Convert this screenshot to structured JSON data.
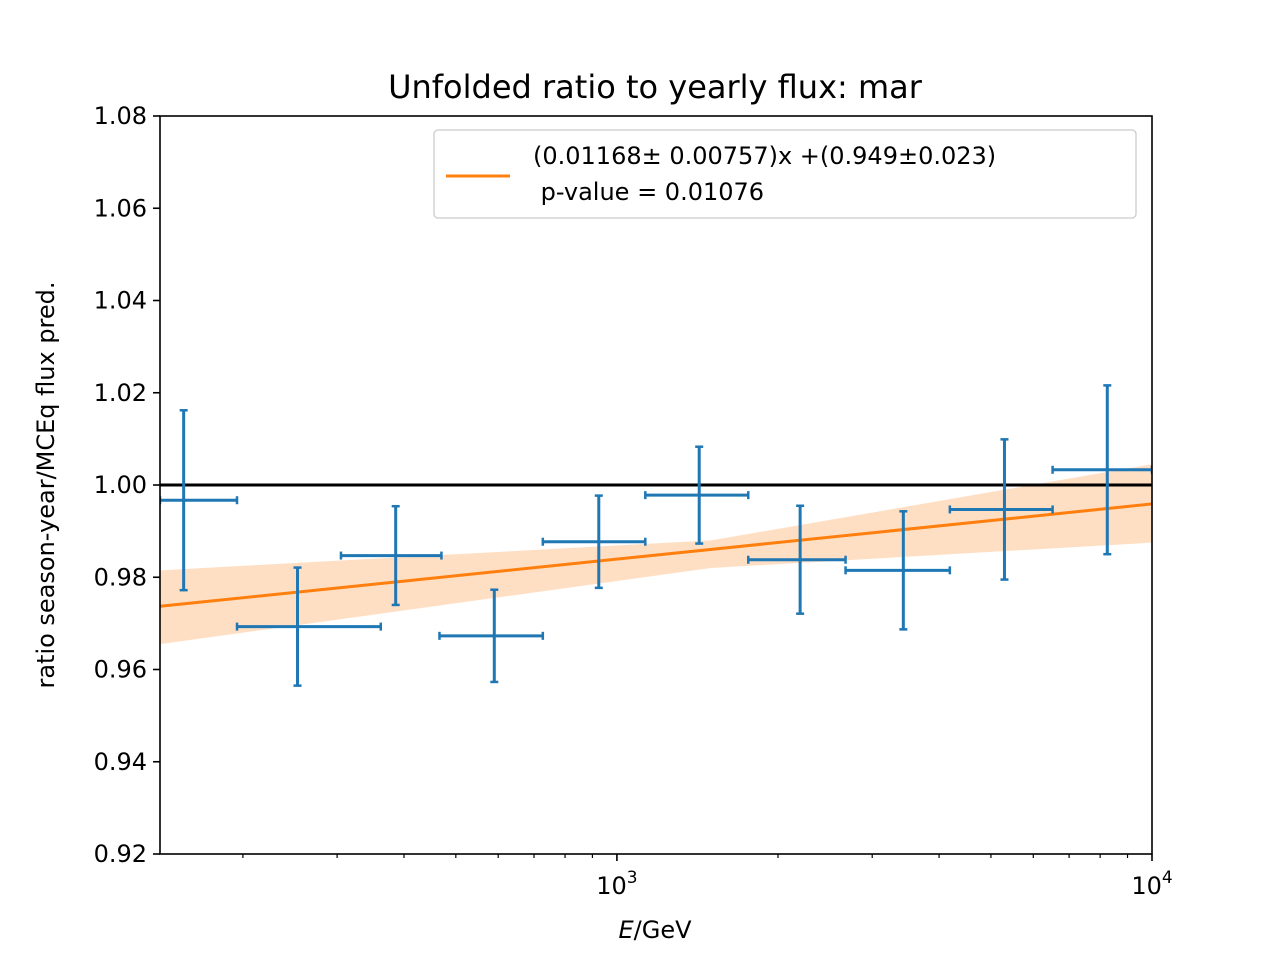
{
  "chart_data": {
    "type": "scatter",
    "title": "Unfolded ratio to yearly flux: mar",
    "xlabel_var": "E",
    "xlabel_unit": "/GeV",
    "ylabel": "ratio season-year/MCEq flux pred.",
    "xscale": "log",
    "xlim": [
      140,
      10000
    ],
    "ylim": [
      0.92,
      1.08
    ],
    "y_ticks": [
      0.92,
      0.94,
      0.96,
      0.98,
      1.0,
      1.02,
      1.04,
      1.06,
      1.08
    ],
    "y_tick_labels": [
      "0.92",
      "0.94",
      "0.96",
      "0.98",
      "1.00",
      "1.02",
      "1.04",
      "1.06",
      "1.08"
    ],
    "x_major_ticks": [
      {
        "value": 1000,
        "base": "10",
        "exp": "3"
      },
      {
        "value": 10000,
        "base": "10",
        "exp": "4"
      }
    ],
    "x_minor_ticks": [
      200,
      300,
      400,
      500,
      600,
      700,
      800,
      900,
      2000,
      3000,
      4000,
      5000,
      6000,
      7000,
      8000,
      9000
    ],
    "grid": false,
    "reference_line": {
      "y": 1.0,
      "color": "#000000"
    },
    "series": [
      {
        "kind": "errorbar",
        "color": "#1f77b4",
        "points": [
          {
            "x": 155,
            "xlo": 140,
            "xhi": 195,
            "y": 0.9967,
            "yerr": 0.0195
          },
          {
            "x": 253,
            "xlo": 195,
            "xhi": 362,
            "y": 0.9693,
            "yerr": 0.0128
          },
          {
            "x": 386,
            "xlo": 305,
            "xhi": 470,
            "y": 0.9847,
            "yerr": 0.0107
          },
          {
            "x": 590,
            "xlo": 466,
            "xhi": 727,
            "y": 0.9673,
            "yerr": 0.01
          },
          {
            "x": 925,
            "xlo": 727,
            "xhi": 1130,
            "y": 0.9877,
            "yerr": 0.01
          },
          {
            "x": 1425,
            "xlo": 1130,
            "xhi": 1760,
            "y": 0.9978,
            "yerr": 0.0105
          },
          {
            "x": 2200,
            "xlo": 1760,
            "xhi": 2675,
            "y": 0.9838,
            "yerr": 0.0117
          },
          {
            "x": 3430,
            "xlo": 2675,
            "xhi": 4190,
            "y": 0.9815,
            "yerr": 0.0128
          },
          {
            "x": 5300,
            "xlo": 4190,
            "xhi": 6520,
            "y": 0.9947,
            "yerr": 0.0152
          },
          {
            "x": 8250,
            "xlo": 6520,
            "xhi": 10000,
            "y": 1.0033,
            "yerr": 0.0183
          }
        ]
      },
      {
        "kind": "fit",
        "color": "#ff7f0e",
        "band_color": "#ffdfc4",
        "name": "(0.01168± 0.00757)x +(0.949±0.023)",
        "name_line2": " p-value = 0.01076",
        "line": [
          {
            "x": 140,
            "y": 0.9737
          },
          {
            "x": 10000,
            "y": 0.9959
          }
        ],
        "band_lower": [
          {
            "x": 140,
            "y": 0.9655
          },
          {
            "x": 1500,
            "y": 0.982
          },
          {
            "x": 10000,
            "y": 0.9875
          }
        ],
        "band_upper": [
          {
            "x": 140,
            "y": 0.9815
          },
          {
            "x": 1500,
            "y": 0.988
          },
          {
            "x": 10000,
            "y": 1.0045
          }
        ]
      }
    ],
    "legend_position": "top-right"
  }
}
